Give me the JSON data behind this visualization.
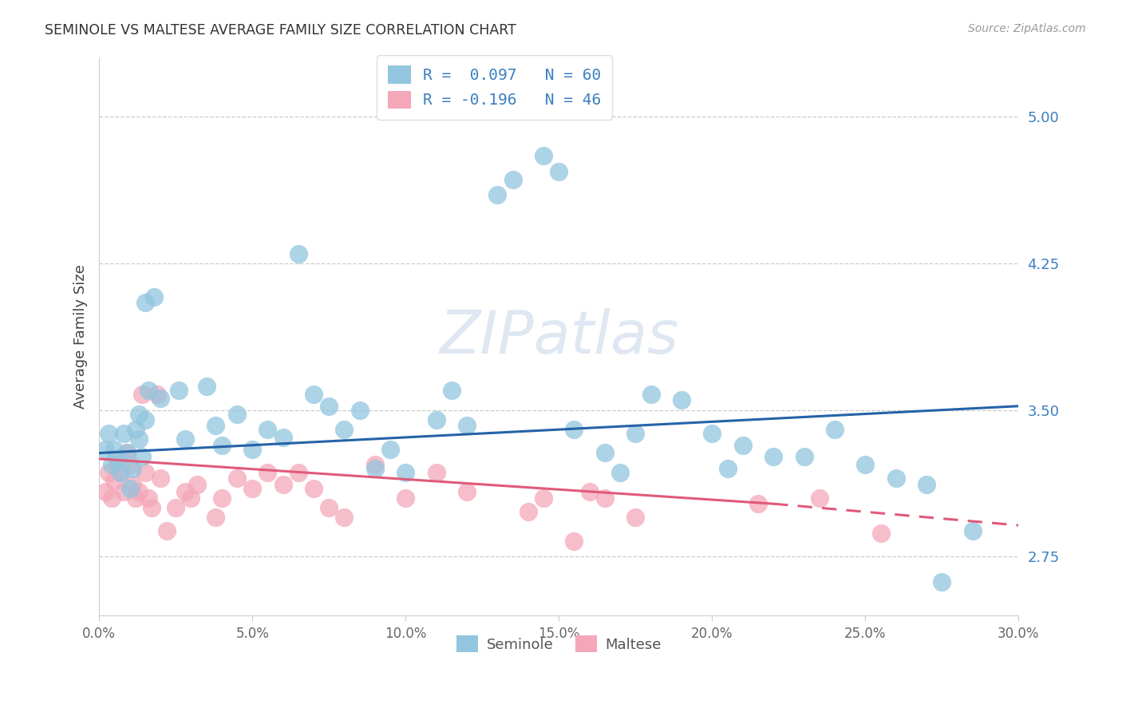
{
  "title": "SEMINOLE VS MALTESE AVERAGE FAMILY SIZE CORRELATION CHART",
  "source": "Source: ZipAtlas.com",
  "ylabel": "Average Family Size",
  "xlabel_ticks": [
    "0.0%",
    "5.0%",
    "10.0%",
    "15.0%",
    "20.0%",
    "25.0%",
    "30.0%"
  ],
  "ytick_values": [
    2.75,
    3.5,
    4.25,
    5.0
  ],
  "ytick_labels": [
    "2.75",
    "3.50",
    "4.25",
    "5.00"
  ],
  "xlim": [
    0.0,
    0.3
  ],
  "ylim": [
    2.45,
    5.3
  ],
  "color_seminole": "#92c5de",
  "color_maltese": "#f4a7b9",
  "color_trend_blue": "#2563a8",
  "color_trend_pink": "#e05a7a",
  "color_text_blue": "#3a7fc1",
  "color_grid": "#cccccc",
  "legend_line1": "R =  0.097   N = 60",
  "legend_line2": "R = -0.196   N = 46",
  "trend_blue": [
    0.0,
    3.28,
    0.3,
    3.52
  ],
  "trend_pink_solid": [
    0.0,
    3.25,
    0.22,
    3.02
  ],
  "trend_pink_dash": [
    0.22,
    3.02,
    0.3,
    2.91
  ],
  "seminole_x": [
    0.002,
    0.003,
    0.004,
    0.005,
    0.006,
    0.007,
    0.008,
    0.009,
    0.01,
    0.011,
    0.012,
    0.013,
    0.013,
    0.014,
    0.015,
    0.015,
    0.016,
    0.018,
    0.02,
    0.026,
    0.028,
    0.035,
    0.038,
    0.04,
    0.045,
    0.05,
    0.055,
    0.06,
    0.065,
    0.07,
    0.075,
    0.08,
    0.085,
    0.09,
    0.095,
    0.1,
    0.11,
    0.115,
    0.12,
    0.13,
    0.135,
    0.145,
    0.15,
    0.155,
    0.165,
    0.17,
    0.175,
    0.18,
    0.19,
    0.2,
    0.205,
    0.21,
    0.22,
    0.23,
    0.24,
    0.25,
    0.26,
    0.27,
    0.275,
    0.285
  ],
  "seminole_y": [
    3.3,
    3.38,
    3.22,
    3.3,
    3.25,
    3.18,
    3.38,
    3.28,
    3.1,
    3.2,
    3.4,
    3.48,
    3.35,
    3.26,
    3.45,
    4.05,
    3.6,
    4.08,
    3.56,
    3.6,
    3.35,
    3.62,
    3.42,
    3.32,
    3.48,
    3.3,
    3.4,
    3.36,
    4.3,
    3.58,
    3.52,
    3.4,
    3.5,
    3.2,
    3.3,
    3.18,
    3.45,
    3.6,
    3.42,
    4.6,
    4.68,
    4.8,
    4.72,
    3.4,
    3.28,
    3.18,
    3.38,
    3.58,
    3.55,
    3.38,
    3.2,
    3.32,
    3.26,
    3.26,
    3.4,
    3.22,
    3.15,
    3.12,
    2.62,
    2.88
  ],
  "maltese_x": [
    0.002,
    0.003,
    0.004,
    0.005,
    0.006,
    0.007,
    0.008,
    0.009,
    0.01,
    0.011,
    0.012,
    0.013,
    0.014,
    0.015,
    0.016,
    0.017,
    0.019,
    0.02,
    0.022,
    0.025,
    0.028,
    0.03,
    0.032,
    0.038,
    0.04,
    0.045,
    0.05,
    0.055,
    0.06,
    0.065,
    0.07,
    0.075,
    0.08,
    0.09,
    0.1,
    0.11,
    0.12,
    0.14,
    0.145,
    0.155,
    0.16,
    0.165,
    0.175,
    0.215,
    0.235,
    0.255
  ],
  "maltese_y": [
    3.08,
    3.18,
    3.05,
    3.14,
    3.22,
    3.18,
    3.08,
    3.28,
    3.22,
    3.12,
    3.05,
    3.08,
    3.58,
    3.18,
    3.05,
    3.0,
    3.58,
    3.15,
    2.88,
    3.0,
    3.08,
    3.05,
    3.12,
    2.95,
    3.05,
    3.15,
    3.1,
    3.18,
    3.12,
    3.18,
    3.1,
    3.0,
    2.95,
    3.22,
    3.05,
    3.18,
    3.08,
    2.98,
    3.05,
    2.83,
    3.08,
    3.05,
    2.95,
    3.02,
    3.05,
    2.87
  ]
}
